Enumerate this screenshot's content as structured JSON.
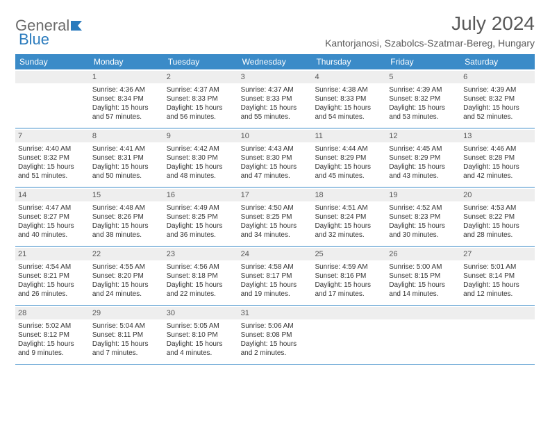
{
  "brand": {
    "word1": "General",
    "word2": "Blue"
  },
  "title": "July 2024",
  "location": "Kantorjanosi, Szabolcs-Szatmar-Bereg, Hungary",
  "colors": {
    "header_bar": "#3b8bc8",
    "header_text": "#ffffff",
    "daynum_bg": "#eeeeee",
    "text": "#333333",
    "title_text": "#595959",
    "logo_gray": "#6b6b6b",
    "logo_blue": "#2b7bbd",
    "row_border": "#3b8bc8"
  },
  "day_names": [
    "Sunday",
    "Monday",
    "Tuesday",
    "Wednesday",
    "Thursday",
    "Friday",
    "Saturday"
  ],
  "weeks": [
    [
      {
        "num": "",
        "lines": []
      },
      {
        "num": "1",
        "lines": [
          "Sunrise: 4:36 AM",
          "Sunset: 8:34 PM",
          "Daylight: 15 hours",
          "and 57 minutes."
        ]
      },
      {
        "num": "2",
        "lines": [
          "Sunrise: 4:37 AM",
          "Sunset: 8:33 PM",
          "Daylight: 15 hours",
          "and 56 minutes."
        ]
      },
      {
        "num": "3",
        "lines": [
          "Sunrise: 4:37 AM",
          "Sunset: 8:33 PM",
          "Daylight: 15 hours",
          "and 55 minutes."
        ]
      },
      {
        "num": "4",
        "lines": [
          "Sunrise: 4:38 AM",
          "Sunset: 8:33 PM",
          "Daylight: 15 hours",
          "and 54 minutes."
        ]
      },
      {
        "num": "5",
        "lines": [
          "Sunrise: 4:39 AM",
          "Sunset: 8:32 PM",
          "Daylight: 15 hours",
          "and 53 minutes."
        ]
      },
      {
        "num": "6",
        "lines": [
          "Sunrise: 4:39 AM",
          "Sunset: 8:32 PM",
          "Daylight: 15 hours",
          "and 52 minutes."
        ]
      }
    ],
    [
      {
        "num": "7",
        "lines": [
          "Sunrise: 4:40 AM",
          "Sunset: 8:32 PM",
          "Daylight: 15 hours",
          "and 51 minutes."
        ]
      },
      {
        "num": "8",
        "lines": [
          "Sunrise: 4:41 AM",
          "Sunset: 8:31 PM",
          "Daylight: 15 hours",
          "and 50 minutes."
        ]
      },
      {
        "num": "9",
        "lines": [
          "Sunrise: 4:42 AM",
          "Sunset: 8:30 PM",
          "Daylight: 15 hours",
          "and 48 minutes."
        ]
      },
      {
        "num": "10",
        "lines": [
          "Sunrise: 4:43 AM",
          "Sunset: 8:30 PM",
          "Daylight: 15 hours",
          "and 47 minutes."
        ]
      },
      {
        "num": "11",
        "lines": [
          "Sunrise: 4:44 AM",
          "Sunset: 8:29 PM",
          "Daylight: 15 hours",
          "and 45 minutes."
        ]
      },
      {
        "num": "12",
        "lines": [
          "Sunrise: 4:45 AM",
          "Sunset: 8:29 PM",
          "Daylight: 15 hours",
          "and 43 minutes."
        ]
      },
      {
        "num": "13",
        "lines": [
          "Sunrise: 4:46 AM",
          "Sunset: 8:28 PM",
          "Daylight: 15 hours",
          "and 42 minutes."
        ]
      }
    ],
    [
      {
        "num": "14",
        "lines": [
          "Sunrise: 4:47 AM",
          "Sunset: 8:27 PM",
          "Daylight: 15 hours",
          "and 40 minutes."
        ]
      },
      {
        "num": "15",
        "lines": [
          "Sunrise: 4:48 AM",
          "Sunset: 8:26 PM",
          "Daylight: 15 hours",
          "and 38 minutes."
        ]
      },
      {
        "num": "16",
        "lines": [
          "Sunrise: 4:49 AM",
          "Sunset: 8:25 PM",
          "Daylight: 15 hours",
          "and 36 minutes."
        ]
      },
      {
        "num": "17",
        "lines": [
          "Sunrise: 4:50 AM",
          "Sunset: 8:25 PM",
          "Daylight: 15 hours",
          "and 34 minutes."
        ]
      },
      {
        "num": "18",
        "lines": [
          "Sunrise: 4:51 AM",
          "Sunset: 8:24 PM",
          "Daylight: 15 hours",
          "and 32 minutes."
        ]
      },
      {
        "num": "19",
        "lines": [
          "Sunrise: 4:52 AM",
          "Sunset: 8:23 PM",
          "Daylight: 15 hours",
          "and 30 minutes."
        ]
      },
      {
        "num": "20",
        "lines": [
          "Sunrise: 4:53 AM",
          "Sunset: 8:22 PM",
          "Daylight: 15 hours",
          "and 28 minutes."
        ]
      }
    ],
    [
      {
        "num": "21",
        "lines": [
          "Sunrise: 4:54 AM",
          "Sunset: 8:21 PM",
          "Daylight: 15 hours",
          "and 26 minutes."
        ]
      },
      {
        "num": "22",
        "lines": [
          "Sunrise: 4:55 AM",
          "Sunset: 8:20 PM",
          "Daylight: 15 hours",
          "and 24 minutes."
        ]
      },
      {
        "num": "23",
        "lines": [
          "Sunrise: 4:56 AM",
          "Sunset: 8:18 PM",
          "Daylight: 15 hours",
          "and 22 minutes."
        ]
      },
      {
        "num": "24",
        "lines": [
          "Sunrise: 4:58 AM",
          "Sunset: 8:17 PM",
          "Daylight: 15 hours",
          "and 19 minutes."
        ]
      },
      {
        "num": "25",
        "lines": [
          "Sunrise: 4:59 AM",
          "Sunset: 8:16 PM",
          "Daylight: 15 hours",
          "and 17 minutes."
        ]
      },
      {
        "num": "26",
        "lines": [
          "Sunrise: 5:00 AM",
          "Sunset: 8:15 PM",
          "Daylight: 15 hours",
          "and 14 minutes."
        ]
      },
      {
        "num": "27",
        "lines": [
          "Sunrise: 5:01 AM",
          "Sunset: 8:14 PM",
          "Daylight: 15 hours",
          "and 12 minutes."
        ]
      }
    ],
    [
      {
        "num": "28",
        "lines": [
          "Sunrise: 5:02 AM",
          "Sunset: 8:12 PM",
          "Daylight: 15 hours",
          "and 9 minutes."
        ]
      },
      {
        "num": "29",
        "lines": [
          "Sunrise: 5:04 AM",
          "Sunset: 8:11 PM",
          "Daylight: 15 hours",
          "and 7 minutes."
        ]
      },
      {
        "num": "30",
        "lines": [
          "Sunrise: 5:05 AM",
          "Sunset: 8:10 PM",
          "Daylight: 15 hours",
          "and 4 minutes."
        ]
      },
      {
        "num": "31",
        "lines": [
          "Sunrise: 5:06 AM",
          "Sunset: 8:08 PM",
          "Daylight: 15 hours",
          "and 2 minutes."
        ]
      },
      {
        "num": "",
        "lines": []
      },
      {
        "num": "",
        "lines": []
      },
      {
        "num": "",
        "lines": []
      }
    ]
  ]
}
